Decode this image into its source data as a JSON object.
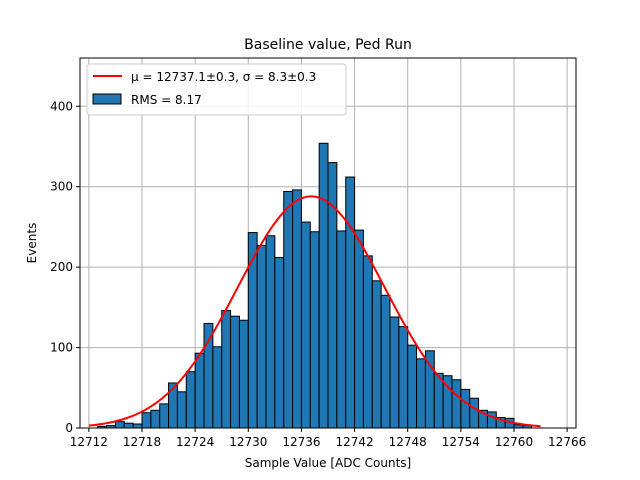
{
  "chart_data": {
    "type": "bar",
    "title": "Baseline value, Ped Run",
    "xlabel": "Sample Value [ADC Counts]",
    "ylabel": "Events",
    "xlim": [
      12711,
      12767
    ],
    "ylim": [
      0,
      460
    ],
    "x_ticks": [
      "12712",
      "12718",
      "12724",
      "12730",
      "12736",
      "12742",
      "12748",
      "12754",
      "12760",
      "12766"
    ],
    "x_tick_values": [
      12712,
      12718,
      12724,
      12730,
      12736,
      12742,
      12748,
      12754,
      12760,
      12766
    ],
    "y_ticks": [
      "0",
      "100",
      "200",
      "300",
      "400"
    ],
    "y_tick_values": [
      0,
      100,
      200,
      300,
      400
    ],
    "grid": true,
    "legend_position": "top-left",
    "bins": {
      "start": 12712,
      "width": 1,
      "values": [
        0,
        2,
        3,
        8,
        6,
        5,
        19,
        22,
        30,
        56,
        45,
        70,
        93,
        130,
        101,
        146,
        139,
        134,
        243,
        227,
        239,
        212,
        294,
        296,
        256,
        244,
        354,
        330,
        245,
        312,
        246,
        214,
        183,
        165,
        138,
        126,
        103,
        86,
        96,
        68,
        65,
        60,
        48,
        37,
        22,
        20,
        13,
        12,
        4,
        3,
        0
      ]
    },
    "fit": {
      "mu": 12737.1,
      "sigma": 8.3,
      "amplitude": 288,
      "label": "μ = 12737.1±0.3, σ = 8.3±0.3"
    },
    "series": [
      {
        "name": "μ = 12737.1±0.3, σ = 8.3±0.3",
        "kind": "line",
        "color": "#ff0000"
      },
      {
        "name": "RMS = 8.17",
        "kind": "bar",
        "color": "#1f77b4"
      }
    ],
    "legend": {
      "fit_label": "μ = 12737.1±0.3, σ = 8.3±0.3",
      "hist_label": "RMS = 8.17"
    },
    "colors": {
      "bar": "#1f77b4",
      "bar_edge": "#000000",
      "fit": "#ff0000",
      "grid": "#b0b0b0"
    }
  }
}
